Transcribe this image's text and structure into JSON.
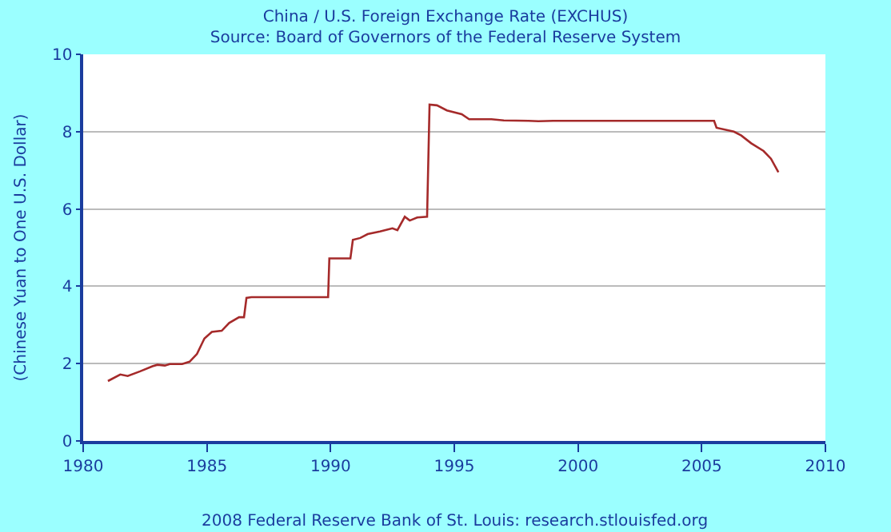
{
  "chart_data": {
    "type": "line",
    "title": "China / U.S. Foreign Exchange Rate (EXCHUS)",
    "subtitle": "Source: Board of Governors of the Federal Reserve System",
    "ylabel": "(Chinese Yuan to One U.S. Dollar)",
    "annotations": [
      "2008 Federal Reserve Bank of St. Louis: research.stlouisfed.org"
    ],
    "x": [
      1981.0,
      1981.5,
      1981.8,
      1982.3,
      1982.8,
      1983.0,
      1983.3,
      1983.5,
      1984.0,
      1984.3,
      1984.6,
      1984.9,
      1985.2,
      1985.6,
      1985.9,
      1986.3,
      1986.5,
      1986.6,
      1986.8,
      1989.9,
      1989.95,
      1990.8,
      1990.9,
      1991.2,
      1991.5,
      1992.0,
      1992.5,
      1992.7,
      1993.0,
      1993.2,
      1993.5,
      1993.9,
      1994.0,
      1994.3,
      1994.7,
      1995.3,
      1995.6,
      1996.5,
      1997.0,
      1998.0,
      1998.4,
      1999.0,
      2005.5,
      2005.6,
      2006.3,
      2006.6,
      2007.0,
      2007.5,
      2007.8,
      2008.1
    ],
    "series": [
      {
        "color": "#a52a2a",
        "values": [
          1.55,
          1.72,
          1.68,
          1.8,
          1.93,
          1.97,
          1.95,
          1.99,
          1.99,
          2.05,
          2.25,
          2.65,
          2.82,
          2.85,
          3.05,
          3.2,
          3.2,
          3.7,
          3.72,
          3.72,
          4.72,
          4.72,
          5.2,
          5.25,
          5.35,
          5.42,
          5.5,
          5.45,
          5.8,
          5.7,
          5.78,
          5.8,
          8.7,
          8.68,
          8.55,
          8.45,
          8.32,
          8.32,
          8.29,
          8.28,
          8.27,
          8.28,
          8.28,
          8.1,
          8.0,
          7.9,
          7.7,
          7.5,
          7.3,
          6.95
        ]
      }
    ],
    "xlim": [
      1980,
      2010
    ],
    "xticks": [
      1980,
      1985,
      1990,
      1995,
      2000,
      2005,
      2010
    ],
    "ylim": [
      0,
      10
    ],
    "yticks": [
      0,
      2,
      4,
      6,
      8,
      10
    ],
    "grid": "y",
    "marker": "none",
    "line_style": "solid"
  }
}
